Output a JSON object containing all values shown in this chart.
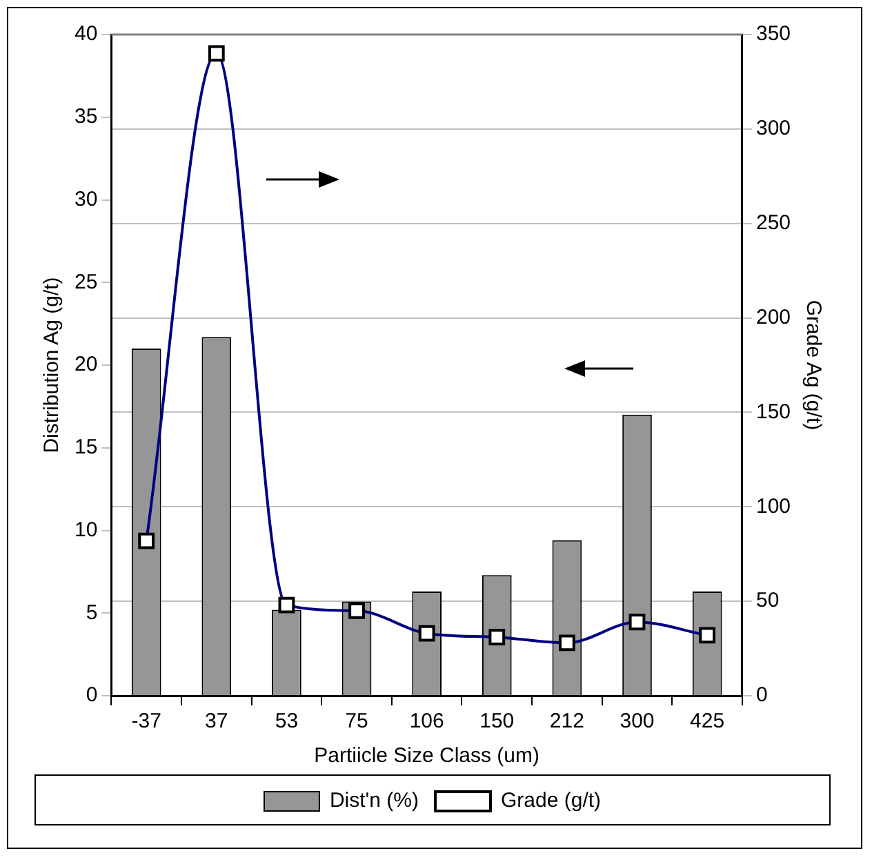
{
  "chart_data": {
    "type": "bar",
    "xlabel": "Partiicle Size Class (um)",
    "ylabel": "Distribution Ag (g/t)",
    "y2label": "Grade Ag (g/t)",
    "categories": [
      "-37",
      "37",
      "53",
      "75",
      "106",
      "150",
      "212",
      "300",
      "425"
    ],
    "series": [
      {
        "name": "Dist'n (%)",
        "color": "#969696",
        "values": [
          21,
          21.7,
          5.2,
          5.7,
          6.3,
          7.3,
          9.4,
          17,
          6.3
        ]
      },
      {
        "name": "Grade (g/t)",
        "type": "line",
        "axis": "y2",
        "color": "#000080",
        "marker": "square",
        "values": [
          82,
          340,
          48,
          45,
          33,
          31,
          28,
          39,
          32
        ]
      }
    ],
    "ylim": [
      0,
      40
    ],
    "yticks": [
      0,
      5,
      10,
      15,
      20,
      25,
      30,
      35,
      40
    ],
    "y2lim": [
      0,
      350
    ],
    "y2ticks": [
      0,
      50,
      100,
      150,
      200,
      250,
      300,
      350
    ],
    "grid": "y2",
    "legend": "bottom"
  }
}
